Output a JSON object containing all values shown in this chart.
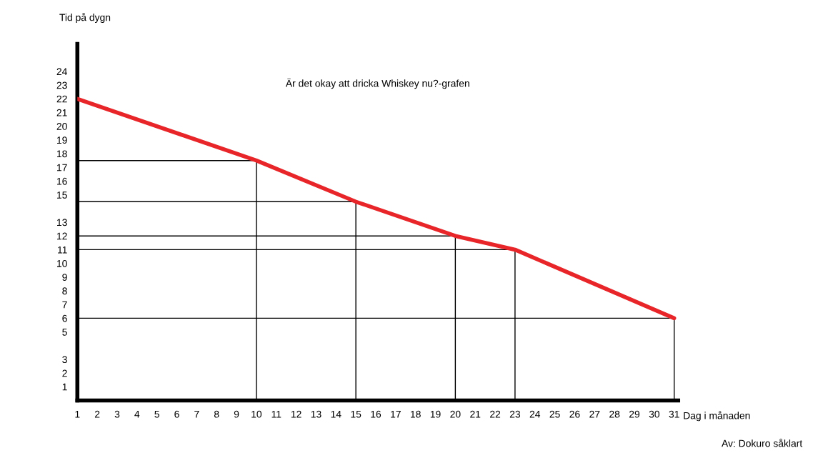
{
  "chart_data": {
    "type": "line",
    "title": "Är det okay att dricka Whiskey nu?-grafen",
    "xlabel": "Dag i månaden",
    "ylabel": "Tid på dygn",
    "annotations": [
      "Av: Dokuro såklart"
    ],
    "xlim": [
      1,
      31.2
    ],
    "xticks": [
      1,
      2,
      3,
      4,
      5,
      6,
      7,
      8,
      9,
      10,
      11,
      12,
      13,
      14,
      15,
      16,
      17,
      18,
      19,
      20,
      21,
      22,
      23,
      24,
      25,
      26,
      27,
      28,
      29,
      30,
      31
    ],
    "ylim": [
      0,
      26
    ],
    "yticks": [
      1,
      2,
      3,
      5,
      6,
      7,
      8,
      9,
      10,
      11,
      12,
      13,
      15,
      16,
      17,
      18,
      19,
      20,
      21,
      22,
      23,
      24
    ],
    "grid": false,
    "legend": false,
    "series": [
      {
        "color": "#000000",
        "x": [
          1,
          10,
          10
        ],
        "values": [
          17.5,
          17.5,
          0
        ]
      },
      {
        "color": "#000000",
        "x": [
          1,
          15,
          15
        ],
        "values": [
          14.5,
          14.5,
          0
        ]
      },
      {
        "color": "#000000",
        "x": [
          1,
          20,
          20
        ],
        "values": [
          12,
          12,
          0
        ]
      },
      {
        "color": "#000000",
        "x": [
          1,
          23,
          23
        ],
        "values": [
          11,
          11,
          0
        ]
      },
      {
        "color": "#000000",
        "x": [
          1,
          31,
          31
        ],
        "values": [
          6,
          6,
          0
        ]
      },
      {
        "color": "#e8262a",
        "x": [
          1,
          10,
          15,
          20,
          23,
          31
        ],
        "values": [
          22,
          17.5,
          14.5,
          12,
          11,
          6
        ]
      }
    ]
  }
}
